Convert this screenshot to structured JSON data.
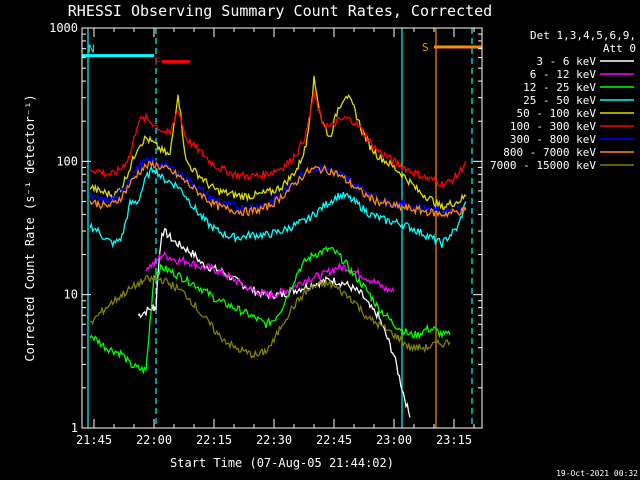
{
  "chart_data": {
    "type": "line",
    "title": "RHESSI Observing Summary Count Rates, Corrected",
    "xlabel": "Start Time (07-Aug-05 21:44:02)",
    "ylabel": "Corrected Count Rate (s⁻¹ detector⁻¹)",
    "yscale": "log",
    "ylim": [
      1,
      1000
    ],
    "xlim_minutes_after_start": [
      -2,
      98
    ],
    "x_ticks": [
      {
        "label": "21:45",
        "minutes": 1
      },
      {
        "label": "22:00",
        "minutes": 16
      },
      {
        "label": "22:15",
        "minutes": 31
      },
      {
        "label": "22:30",
        "minutes": 46
      },
      {
        "label": "22:45",
        "minutes": 61
      },
      {
        "label": "23:00",
        "minutes": 76
      },
      {
        "label": "23:15",
        "minutes": 91
      }
    ],
    "y_ticks": [
      {
        "label": "1",
        "value": 1
      },
      {
        "label": "10",
        "value": 10
      },
      {
        "label": "100",
        "value": 100
      },
      {
        "label": "1000",
        "value": 1000
      }
    ],
    "legend_header": [
      "Det 1,3,4,5,6,9,",
      "Att 0"
    ],
    "legend_position": "right",
    "flags": [
      {
        "label": "N",
        "color": "#00ffff",
        "t_start": -2,
        "t_end": 16,
        "y": 620
      },
      {
        "label": "F",
        "color": "#ff0000",
        "t_start": 18,
        "t_end": 25,
        "y": 560
      },
      {
        "label": "S",
        "color": "#ff8c00",
        "t_start": 86,
        "t_end": 98,
        "y": 720
      }
    ],
    "vlines": [
      {
        "t": -0.5,
        "color": "#00ffff",
        "style": "solid"
      },
      {
        "t": 16.5,
        "color": "#00ffff",
        "style": "dashed"
      },
      {
        "t": 78.0,
        "color": "#00ffff",
        "style": "solid"
      },
      {
        "t": 86.5,
        "color": "#ff8c00",
        "style": "solid"
      },
      {
        "t": 95.5,
        "color": "#00ffff",
        "style": "dashed"
      }
    ],
    "series": [
      {
        "name": "3 - 6 keV",
        "color": "#ffffff",
        "t": [
          12,
          14,
          15.8,
          16,
          16.5,
          17,
          18,
          19,
          20,
          21,
          22,
          24,
          26,
          28,
          30,
          33,
          36,
          38,
          40,
          42,
          44,
          46,
          48,
          50,
          52,
          54,
          56,
          58,
          60,
          62,
          64,
          66,
          68,
          70,
          72,
          74,
          76,
          78,
          80
        ],
        "v": [
          7,
          7.5,
          8,
          8,
          8,
          15,
          30,
          29,
          27,
          25,
          24,
          22,
          20,
          17,
          16,
          15,
          13,
          12,
          11,
          10.5,
          10,
          10,
          10,
          10.5,
          11,
          11.5,
          12,
          12.5,
          13,
          12.5,
          12,
          11,
          10,
          8,
          7,
          5,
          3.5,
          2,
          1.2
        ]
      },
      {
        "name": "6 - 12 keV",
        "color": "#ff00ff",
        "t": [
          14,
          16,
          18,
          20,
          22,
          24,
          26,
          28,
          30,
          32,
          34,
          36,
          38,
          40,
          42,
          44,
          46,
          48,
          50,
          52,
          54,
          56,
          58,
          60,
          62,
          64,
          66,
          68,
          70,
          72,
          74,
          76
        ],
        "v": [
          16,
          17,
          20,
          19,
          18,
          18,
          17,
          16,
          16,
          15,
          14,
          13,
          12,
          11,
          10.5,
          10,
          10,
          10.5,
          11,
          12,
          13,
          13.5,
          14,
          15,
          16,
          16,
          15,
          14,
          13,
          12,
          11,
          10.5
        ]
      },
      {
        "name": "12 - 25 keV",
        "color": "#00ff00",
        "t": [
          0,
          2,
          4,
          6,
          8,
          10,
          12,
          14,
          16,
          18,
          20,
          22,
          24,
          26,
          28,
          30,
          32,
          34,
          36,
          38,
          40,
          42,
          44,
          46,
          48,
          50,
          52,
          54,
          56,
          58,
          60,
          62,
          64,
          66,
          68,
          70,
          72,
          74,
          76,
          78,
          80,
          82,
          84,
          86,
          88,
          90
        ],
        "v": [
          5,
          4.5,
          4,
          3.8,
          3.6,
          3,
          2.8,
          2.7,
          14,
          16,
          15,
          14,
          13,
          12,
          11,
          10,
          9,
          8.5,
          8,
          7.5,
          7,
          6.5,
          6,
          6.5,
          8,
          11,
          15,
          18,
          20,
          21,
          22,
          20,
          17,
          14,
          12,
          10,
          8,
          7,
          6,
          5.5,
          5,
          5,
          5.5,
          5.5,
          5,
          5
        ]
      },
      {
        "name": "25 - 50 keV",
        "color": "#00ffff",
        "t": [
          0,
          2,
          4,
          6,
          8,
          10,
          12,
          14,
          16,
          18,
          20,
          22,
          24,
          26,
          28,
          30,
          32,
          34,
          36,
          38,
          40,
          42,
          44,
          46,
          48,
          50,
          52,
          54,
          56,
          58,
          60,
          62,
          64,
          66,
          68,
          70,
          72,
          74,
          76,
          78,
          80,
          82,
          84,
          86,
          88,
          90,
          92,
          94
        ],
        "v": [
          33,
          30,
          26,
          24,
          27,
          48,
          50,
          75,
          90,
          75,
          70,
          65,
          55,
          45,
          38,
          33,
          30,
          28,
          27,
          27,
          28,
          28,
          28,
          29,
          30,
          32,
          34,
          36,
          40,
          45,
          50,
          55,
          55,
          50,
          45,
          40,
          38,
          36,
          35,
          34,
          32,
          30,
          28,
          26,
          24,
          28,
          32,
          50
        ]
      },
      {
        "name": "50 - 100 keV",
        "color": "#dddd00",
        "t": [
          0,
          2,
          4,
          6,
          8,
          10,
          12,
          14,
          16,
          18,
          20,
          22,
          24,
          26,
          28,
          30,
          32,
          34,
          36,
          38,
          40,
          42,
          44,
          46,
          48,
          50,
          52,
          54,
          56,
          58,
          60,
          62,
          64,
          66,
          68,
          70,
          72,
          74,
          76,
          78,
          80,
          82,
          84,
          86,
          88,
          90,
          92,
          94
        ],
        "v": [
          65,
          60,
          58,
          55,
          65,
          90,
          130,
          150,
          135,
          120,
          110,
          330,
          100,
          85,
          75,
          65,
          60,
          58,
          56,
          55,
          55,
          56,
          58,
          60,
          65,
          75,
          90,
          130,
          410,
          200,
          150,
          250,
          320,
          250,
          170,
          130,
          110,
          100,
          90,
          80,
          70,
          60,
          55,
          50,
          45,
          48,
          50,
          55
        ]
      },
      {
        "name": "100 - 300 keV",
        "color": "#ff0000",
        "t": [
          0,
          2,
          4,
          6,
          8,
          10,
          12,
          14,
          16,
          18,
          20,
          22,
          24,
          26,
          28,
          30,
          32,
          34,
          36,
          38,
          40,
          42,
          44,
          46,
          48,
          50,
          52,
          54,
          56,
          58,
          60,
          62,
          64,
          66,
          68,
          70,
          72,
          74,
          76,
          78,
          80,
          82,
          84,
          86,
          88,
          90,
          92,
          94
        ],
        "v": [
          88,
          85,
          80,
          80,
          90,
          110,
          200,
          210,
          190,
          170,
          160,
          250,
          150,
          130,
          115,
          100,
          90,
          85,
          80,
          78,
          77,
          78,
          80,
          85,
          90,
          100,
          120,
          160,
          320,
          200,
          180,
          200,
          210,
          200,
          170,
          140,
          120,
          110,
          100,
          92,
          85,
          80,
          75,
          72,
          68,
          70,
          80,
          100
        ]
      },
      {
        "name": "300 - 800 keV",
        "color": "#0000ff",
        "t": [
          0,
          2,
          4,
          6,
          8,
          10,
          12,
          14,
          16,
          18,
          20,
          22,
          24,
          26,
          28,
          30,
          32,
          34,
          36,
          38,
          40,
          42,
          44,
          46,
          48,
          50,
          52,
          54,
          56,
          58,
          60,
          62,
          64,
          66,
          68,
          70,
          72,
          74,
          76,
          78,
          80,
          82,
          84,
          86,
          88,
          90,
          92,
          94
        ],
        "v": [
          55,
          52,
          50,
          52,
          60,
          75,
          90,
          100,
          100,
          95,
          90,
          82,
          75,
          68,
          60,
          54,
          50,
          47,
          46,
          45,
          45,
          46,
          48,
          52,
          58,
          65,
          75,
          85,
          90,
          88,
          86,
          82,
          75,
          68,
          62,
          57,
          53,
          50,
          48,
          47,
          46,
          45,
          44,
          43,
          42,
          43,
          44,
          45
        ]
      },
      {
        "name": "800 - 7000 keV",
        "color": "#ff8c00",
        "t": [
          0,
          2,
          4,
          6,
          8,
          10,
          12,
          14,
          16,
          18,
          20,
          22,
          24,
          26,
          28,
          30,
          32,
          34,
          36,
          38,
          40,
          42,
          44,
          46,
          48,
          50,
          52,
          54,
          56,
          58,
          60,
          62,
          64,
          66,
          68,
          70,
          72,
          74,
          76,
          78,
          80,
          82,
          84,
          86,
          88,
          90,
          92,
          94
        ],
        "v": [
          50,
          48,
          46,
          48,
          55,
          68,
          82,
          92,
          95,
          90,
          85,
          78,
          70,
          62,
          56,
          50,
          46,
          44,
          43,
          42,
          42,
          43,
          45,
          49,
          55,
          62,
          72,
          82,
          88,
          87,
          85,
          80,
          72,
          65,
          58,
          53,
          50,
          48,
          46,
          45,
          44,
          43,
          42,
          41,
          40,
          41,
          42,
          43
        ]
      },
      {
        "name": "7000 - 15000 keV",
        "color": "#808000",
        "t": [
          0,
          2,
          4,
          6,
          8,
          10,
          12,
          14,
          16,
          18,
          20,
          22,
          24,
          26,
          28,
          30,
          32,
          34,
          36,
          38,
          40,
          42,
          44,
          46,
          48,
          50,
          52,
          54,
          56,
          58,
          60,
          62,
          64,
          66,
          68,
          70,
          72,
          74,
          76,
          78,
          80,
          82,
          84,
          86,
          88,
          90
        ],
        "v": [
          6,
          7,
          8,
          9,
          10,
          11,
          12,
          13,
          13,
          13,
          12,
          11,
          10,
          8.5,
          7,
          6,
          5,
          4.5,
          4,
          3.8,
          3.6,
          3.5,
          3.8,
          4.5,
          6,
          7.5,
          9,
          10.5,
          11.5,
          12,
          12,
          11,
          10,
          9,
          7.5,
          6.5,
          6,
          5.5,
          5,
          4.5,
          4,
          4,
          4,
          4.2,
          4.3,
          4.4
        ]
      }
    ]
  },
  "footer": {
    "timestamp": "19-Oct-2021 00:32"
  }
}
